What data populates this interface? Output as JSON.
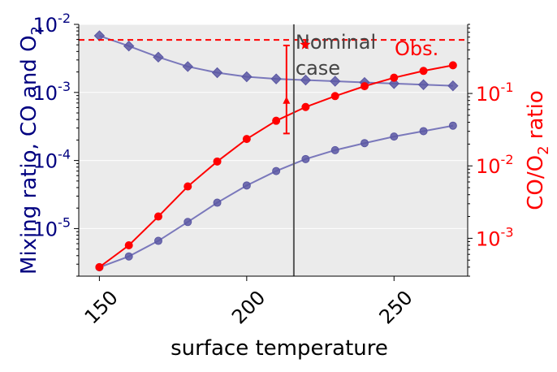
{
  "chart_data": {
    "type": "line",
    "xlabel": "surface temperature",
    "ylabel_left_parts": [
      "Mixing ratio, CO and O",
      "2"
    ],
    "ylabel_right_parts": [
      "CO/O",
      "2",
      " ratio"
    ],
    "x_ticks": [
      150,
      200,
      250
    ],
    "xlim": [
      143,
      275
    ],
    "ylim_left": [
      2e-06,
      0.01
    ],
    "yscale_left": "log",
    "ylim_right": [
      0.0003,
      0.9
    ],
    "yscale_right": "log",
    "left_ticks": [
      {
        "value": 1e-05,
        "base": "10",
        "exp": "-5"
      },
      {
        "value": 0.0001,
        "base": "10",
        "exp": "-4"
      },
      {
        "value": 0.001,
        "base": "10",
        "exp": "-3"
      },
      {
        "value": 0.01,
        "base": "10",
        "exp": "-2"
      }
    ],
    "right_ticks": [
      {
        "value": 0.001,
        "base": "10",
        "exp": "-3"
      },
      {
        "value": 0.01,
        "base": "10",
        "exp": "-2"
      },
      {
        "value": 0.1,
        "base": "10",
        "exp": "-1"
      }
    ],
    "grid": "horizontal",
    "colors": {
      "background": "#ebebeb",
      "grid": "#ffffff",
      "left_axis": "#000080",
      "right_axis": "#ff0000",
      "series_blue": "#7472b8",
      "marker_blue": "#5a57a3",
      "series_red": "#ff0000",
      "nominal_line": "#555555",
      "text": "#000000",
      "annotation": "#444444"
    },
    "series": [
      {
        "axis": "left",
        "marker": "diamond",
        "x": [
          150,
          160,
          170,
          180,
          190,
          200,
          210,
          220,
          230,
          240,
          250,
          260,
          270
        ],
        "values": [
          0.0068,
          0.0048,
          0.0033,
          0.0024,
          0.00195,
          0.0017,
          0.00158,
          0.00152,
          0.00146,
          0.0014,
          0.00135,
          0.0013,
          0.00125
        ]
      },
      {
        "axis": "left",
        "marker": "circle",
        "x": [
          150,
          160,
          170,
          180,
          190,
          200,
          210,
          220,
          230,
          240,
          250,
          260,
          270
        ],
        "values": [
          2.7e-06,
          3.9e-06,
          6.6e-06,
          1.25e-05,
          2.4e-05,
          4.3e-05,
          7e-05,
          0.000105,
          0.000142,
          0.00018,
          0.000225,
          0.00027,
          0.000325
        ]
      },
      {
        "axis": "right",
        "marker": "circle",
        "x": [
          150,
          160,
          170,
          180,
          190,
          200,
          210,
          220,
          230,
          240,
          250,
          260,
          270
        ],
        "values": [
          0.0004,
          0.0008,
          0.002,
          0.0052,
          0.0115,
          0.0235,
          0.042,
          0.065,
          0.092,
          0.126,
          0.165,
          0.205,
          0.245
        ]
      }
    ],
    "nominal_x": 216,
    "nominal_label_lines": [
      "Nominal",
      "case"
    ],
    "obs_value_right": 0.55,
    "obs_label": "Obs.",
    "errorbar": {
      "x": 213.5,
      "center": 0.078,
      "low": 0.028,
      "high": 0.46
    }
  }
}
